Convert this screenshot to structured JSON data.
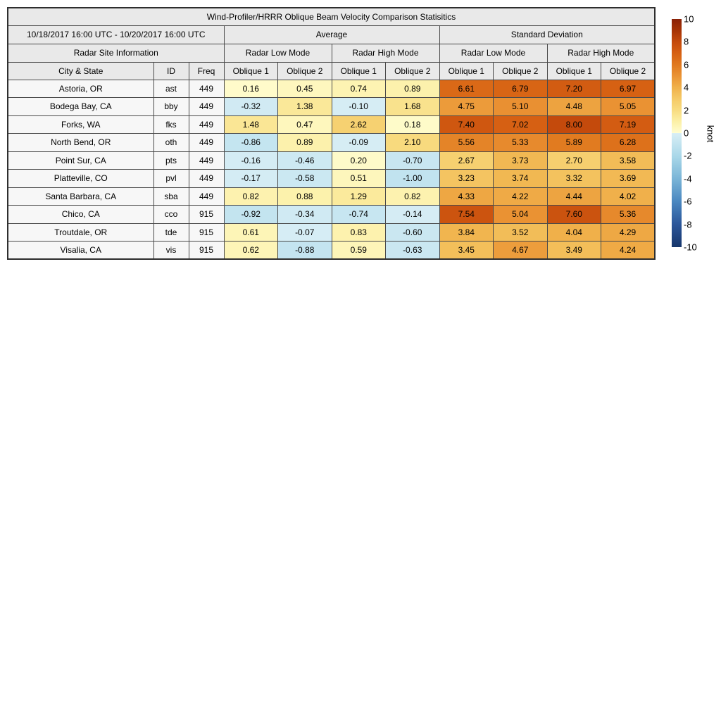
{
  "title": "Wind-Profiler/HRRR Oblique Beam Velocity Comparison Statisitics",
  "header": {
    "date_range": "10/18/2017 16:00 UTC - 10/20/2017 16:00 UTC",
    "group_average": "Average",
    "group_std": "Standard Deviation",
    "site_info": "Radar Site Information",
    "mode_low": "Radar Low Mode",
    "mode_high": "Radar High Mode",
    "col_city": "City & State",
    "col_id": "ID",
    "col_freq": "Freq",
    "oblique1": "Oblique 1",
    "oblique2": "Oblique 2"
  },
  "chart_data": {
    "type": "heatmap",
    "title": "Wind-Profiler/HRRR Oblique Beam Velocity Comparison Statisitics",
    "value_column_groups": [
      "Average Radar Low Mode",
      "Average Radar High Mode",
      "Standard Deviation Radar Low Mode",
      "Standard Deviation Radar High Mode"
    ],
    "value_columns_per_group": [
      "Oblique 1",
      "Oblique 2"
    ],
    "units": "knot",
    "color_range": [
      -10,
      10
    ],
    "rows": [
      {
        "city": "Astoria, OR",
        "id": "ast",
        "freq": "449",
        "values": [
          "0.16",
          "0.45",
          "0.74",
          "0.89",
          "6.61",
          "6.79",
          "7.20",
          "6.97"
        ]
      },
      {
        "city": "Bodega Bay, CA",
        "id": "bby",
        "freq": "449",
        "values": [
          "-0.32",
          "1.38",
          "-0.10",
          "1.68",
          "4.75",
          "5.10",
          "4.48",
          "5.05"
        ]
      },
      {
        "city": "Forks, WA",
        "id": "fks",
        "freq": "449",
        "values": [
          "1.48",
          "0.47",
          "2.62",
          "0.18",
          "7.40",
          "7.02",
          "8.00",
          "7.19"
        ]
      },
      {
        "city": "North Bend, OR",
        "id": "oth",
        "freq": "449",
        "values": [
          "-0.86",
          "0.89",
          "-0.09",
          "2.10",
          "5.56",
          "5.33",
          "5.89",
          "6.28"
        ]
      },
      {
        "city": "Point Sur, CA",
        "id": "pts",
        "freq": "449",
        "values": [
          "-0.16",
          "-0.46",
          "0.20",
          "-0.70",
          "2.67",
          "3.73",
          "2.70",
          "3.58"
        ]
      },
      {
        "city": "Platteville, CO",
        "id": "pvl",
        "freq": "449",
        "values": [
          "-0.17",
          "-0.58",
          "0.51",
          "-1.00",
          "3.23",
          "3.74",
          "3.32",
          "3.69"
        ]
      },
      {
        "city": "Santa Barbara, CA",
        "id": "sba",
        "freq": "449",
        "values": [
          "0.82",
          "0.88",
          "1.29",
          "0.82",
          "4.33",
          "4.22",
          "4.44",
          "4.02"
        ]
      },
      {
        "city": "Chico, CA",
        "id": "cco",
        "freq": "915",
        "values": [
          "-0.92",
          "-0.34",
          "-0.74",
          "-0.14",
          "7.54",
          "5.04",
          "7.60",
          "5.36"
        ]
      },
      {
        "city": "Troutdale, OR",
        "id": "tde",
        "freq": "915",
        "values": [
          "0.61",
          "-0.07",
          "0.83",
          "-0.60",
          "3.84",
          "3.52",
          "4.04",
          "4.29"
        ]
      },
      {
        "city": "Visalia, CA",
        "id": "vis",
        "freq": "915",
        "values": [
          "0.62",
          "-0.88",
          "0.59",
          "-0.63",
          "3.45",
          "4.67",
          "3.49",
          "4.24"
        ]
      }
    ]
  },
  "colorbar": {
    "label": "knot",
    "min": -10,
    "max": 10,
    "ticks": [
      "10",
      "8",
      "6",
      "4",
      "2",
      "0",
      "-2",
      "-4",
      "-6",
      "-8",
      "-10"
    ],
    "stops": [
      [
        -10,
        "#17366b"
      ],
      [
        -8,
        "#2b569a"
      ],
      [
        -6,
        "#4a87c0"
      ],
      [
        -4,
        "#7ab5d7"
      ],
      [
        -2,
        "#aad8e9"
      ],
      [
        -0.001,
        "#d8eef5"
      ],
      [
        0,
        "#fffdd1"
      ],
      [
        1,
        "#fcf0a7"
      ],
      [
        2,
        "#f8dc81"
      ],
      [
        3,
        "#f5ca67"
      ],
      [
        4,
        "#f0b14b"
      ],
      [
        5,
        "#ea9334"
      ],
      [
        6,
        "#e0781e"
      ],
      [
        7,
        "#d66013"
      ],
      [
        8,
        "#c44a0c"
      ],
      [
        9,
        "#a63305"
      ],
      [
        10,
        "#8a2107"
      ]
    ]
  },
  "colors": {
    "header_bg": "#e9e9e9",
    "info_cell_bg": "#f7f7f7",
    "grid_line": "#4a4a4a",
    "outer_border": "#2e2e2e"
  }
}
